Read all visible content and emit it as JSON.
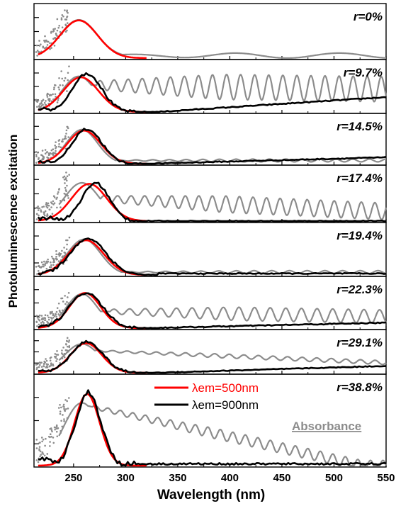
{
  "chart_data": {
    "type": "line",
    "xlabel": "Wavelength (nm)",
    "ylabel": "Photoluminescence excitation",
    "xlim": [
      212,
      550
    ],
    "xticks": [
      250,
      300,
      350,
      400,
      450,
      500,
      550
    ],
    "grid": false,
    "legend": {
      "placement": "inside bottom panel, top-center",
      "entries": [
        {
          "label": "λem=500nm",
          "color": "#ff0000"
        },
        {
          "label": "λem=900nm",
          "color": "#000000"
        },
        {
          "label": "Absorbance",
          "color": "#8c8c8c"
        }
      ]
    },
    "series_style": {
      "pl500": {
        "name": "λem=500nm",
        "color": "#ff0000",
        "width": 2.6
      },
      "pl900": {
        "name": "λem=900nm",
        "color": "#000000",
        "width": 2.6
      },
      "absorbance": {
        "name": "Absorbance",
        "color": "#8c8c8c",
        "width": 2.2
      }
    },
    "panels": [
      {
        "label": "r=0%",
        "pl500": {
          "peak": 255,
          "sigma": 18,
          "amp": 0.75
        },
        "pl900": null,
        "absorbance": {
          "peak": 255,
          "sigma": 18,
          "amp": 0.76,
          "tail": 0.05,
          "tail_slope": 0.0,
          "osc_start": 280,
          "osc_amp": 0.05,
          "osc_period": 100
        }
      },
      {
        "label": "r=9.7%",
        "pl500": {
          "peak": 257,
          "sigma": 17,
          "amp": 0.72
        },
        "pl900": {
          "peak": 263,
          "sigma": 14,
          "amp": 0.8,
          "tail_start": 330,
          "tail_level": 0.0,
          "tail_slope": 0.0014
        },
        "absorbance": {
          "peak": 255,
          "sigma": 16,
          "amp": 0.74,
          "tail": 0.56,
          "tail_slope": -0.0003,
          "osc_start": 272,
          "osc_amp": 0.26,
          "osc_period": 13.5
        }
      },
      {
        "label": "r=14.5%",
        "pl500": {
          "peak": 260,
          "sigma": 16,
          "amp": 0.72
        },
        "pl900": {
          "peak": 263,
          "sigma": 14,
          "amp": 0.75,
          "tail_start": 320,
          "tail_level": 0.0,
          "tail_slope": 0.0006
        },
        "absorbance": {
          "peak": 258,
          "sigma": 15,
          "amp": 0.74,
          "tail": 0.07,
          "tail_slope": 0.0,
          "osc_start": 290,
          "osc_amp": 0.03,
          "osc_period": 16
        }
      },
      {
        "label": "r=17.4%",
        "pl500": {
          "peak": 265,
          "sigma": 17,
          "amp": 0.72
        },
        "pl900": {
          "peak": 271,
          "sigma": 13,
          "amp": 0.74,
          "tail_start": 320,
          "tail_level": 0.0,
          "tail_slope": 0.0
        },
        "absorbance": {
          "peak": 258,
          "sigma": 17,
          "amp": 0.74,
          "tail": 0.45,
          "tail_slope": -0.0009,
          "osc_start": 276,
          "osc_amp": 0.16,
          "osc_period": 13
        }
      },
      {
        "label": "r=19.4%",
        "pl500": {
          "peak": 262,
          "sigma": 17,
          "amp": 0.72
        },
        "pl900": {
          "peak": 264,
          "sigma": 17,
          "amp": 0.76,
          "tail_start": 330,
          "tail_level": 0.03,
          "tail_slope": 0.0
        },
        "absorbance": {
          "peak": 260,
          "sigma": 16,
          "amp": 0.74,
          "tail": 0.06,
          "tail_slope": 0.0,
          "osc_start": 300,
          "osc_amp": 0.03,
          "osc_period": 17
        }
      },
      {
        "label": "r=22.3%",
        "pl500": {
          "peak": 261,
          "sigma": 15,
          "amp": 0.74
        },
        "pl900": {
          "peak": 262,
          "sigma": 16,
          "amp": 0.74,
          "tail_start": 320,
          "tail_level": 0.0,
          "tail_slope": 0.0005
        },
        "absorbance": {
          "peak": 258,
          "sigma": 15,
          "amp": 0.72,
          "tail": 0.36,
          "tail_slope": -0.0004,
          "osc_start": 285,
          "osc_amp": 0.14,
          "osc_period": 15
        }
      },
      {
        "label": "r=29.1%",
        "pl500": {
          "peak": 262,
          "sigma": 15,
          "amp": 0.76
        },
        "pl900": {
          "peak": 263,
          "sigma": 15,
          "amp": 0.8,
          "tail_start": 330,
          "tail_level": 0.0,
          "tail_slope": 0.0008
        },
        "absorbance": {
          "peak": 258,
          "sigma": 17,
          "amp": 0.74,
          "tail": 0.58,
          "tail_slope": -0.0011,
          "osc_start": 270,
          "osc_amp": 0.05,
          "osc_period": 14
        }
      },
      {
        "label": "r=38.8%",
        "pl500": {
          "peak": 263,
          "sigma": 12,
          "amp": 0.82
        },
        "pl900": {
          "peak": 264,
          "sigma": 12,
          "amp": 0.84,
          "tail_start": 300,
          "tail_level": 0.02,
          "tail_slope": 0.0
        },
        "absorbance": {
          "peak": 258,
          "sigma": 18,
          "amp": 0.72,
          "tail": 0.7,
          "tail_slope": -0.0026,
          "osc_start": 268,
          "osc_amp": 0.06,
          "osc_period": 12
        }
      }
    ]
  }
}
